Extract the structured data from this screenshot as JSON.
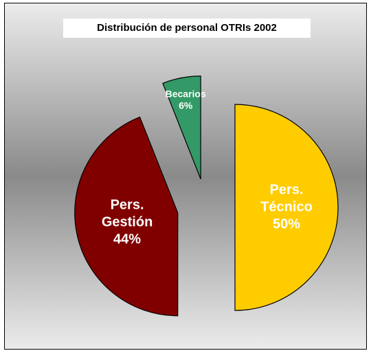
{
  "chart_data": {
    "type": "pie",
    "title": "Distribución de personal OTRIs 2002",
    "categories": [
      "Pers. Técnico",
      "Pers. Gestión",
      "Becarios"
    ],
    "values": [
      50,
      44,
      6
    ],
    "value_labels": [
      "50%",
      "44%",
      "6%"
    ],
    "colors": [
      "#ffcc00",
      "#800000",
      "#339966"
    ],
    "exploded": true
  }
}
